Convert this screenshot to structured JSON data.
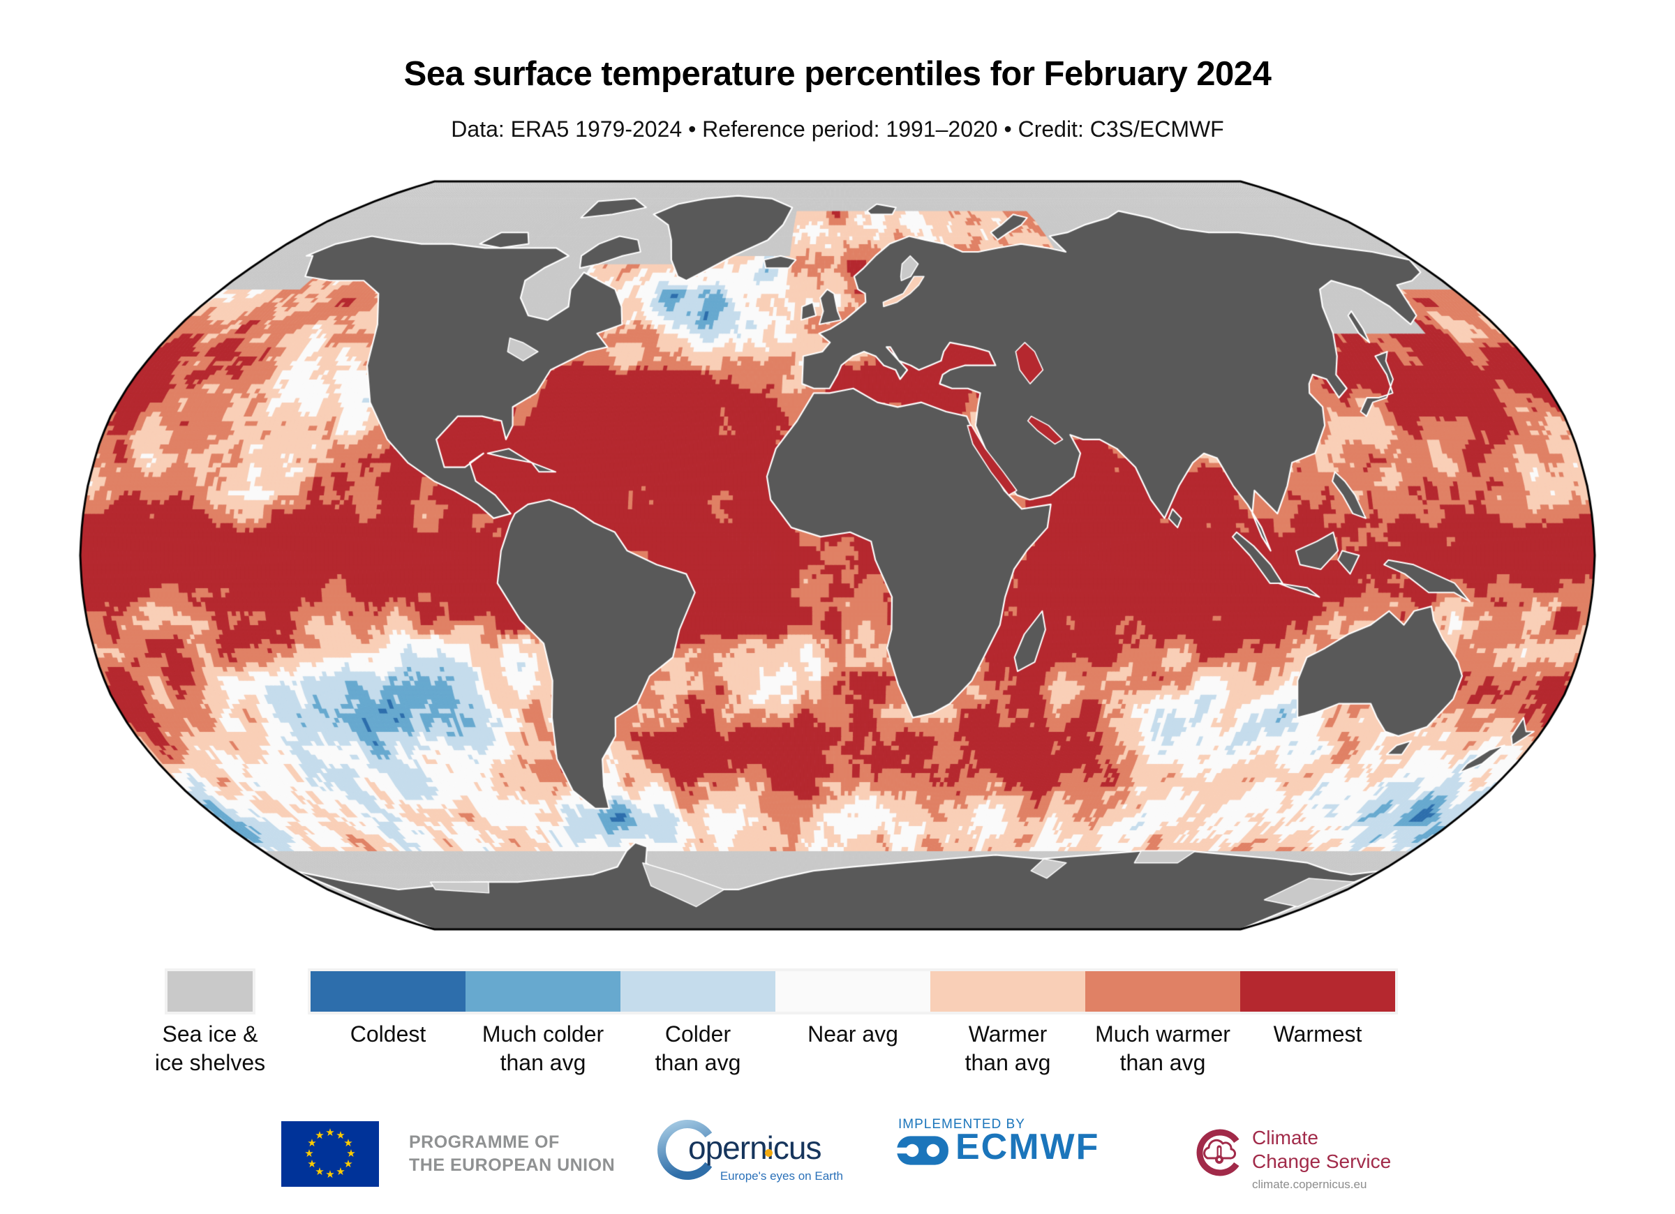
{
  "title": "Sea surface temperature percentiles for February 2024",
  "subtitle": "Data: ERA5 1979-2024 • Reference period: 1991–2020 • Credit: C3S/ECMWF",
  "map": {
    "projection": "robinson",
    "colors": {
      "land": "#595959",
      "sea_ice": "#c9c9c9",
      "coastline": "#ffffff",
      "outline": "#000000",
      "background": "#ffffff"
    }
  },
  "legend": {
    "ice": {
      "label_line1": "Sea ice &",
      "label_line2": "ice shelves",
      "color": "#c9c9c9"
    },
    "classes": [
      {
        "label_line1": "Coldest",
        "label_line2": "",
        "color": "#2d6eac"
      },
      {
        "label_line1": "Much colder",
        "label_line2": "than avg",
        "color": "#67a9cf"
      },
      {
        "label_line1": "Colder",
        "label_line2": "than avg",
        "color": "#c5dcec"
      },
      {
        "label_line1": "Near avg",
        "label_line2": "",
        "color": "#fafafa"
      },
      {
        "label_line1": "Warmer",
        "label_line2": "than avg",
        "color": "#f9cfb7"
      },
      {
        "label_line1": "Much warmer",
        "label_line2": "than avg",
        "color": "#e08165"
      },
      {
        "label_line1": "Warmest",
        "label_line2": "",
        "color": "#b5282f"
      }
    ]
  },
  "footer": {
    "eu": {
      "line1": "PROGRAMME OF",
      "line2": "THE EUROPEAN UNION"
    },
    "copernicus": {
      "name": "opernicus",
      "tagline": "Europe's eyes on Earth"
    },
    "ecmwf": {
      "implemented_by": "IMPLEMENTED BY",
      "name": "ECMWF"
    },
    "c3s": {
      "line1": "Climate",
      "line2": "Change Service",
      "url": "climate.copernicus.eu"
    }
  }
}
